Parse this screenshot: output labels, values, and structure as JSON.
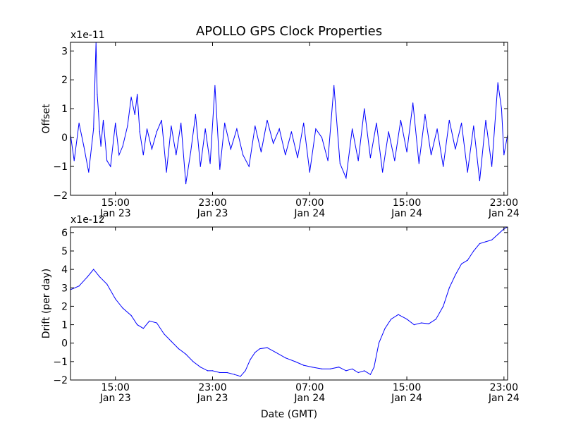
{
  "chart_data": [
    {
      "type": "line",
      "title": "APOLLO GPS Clock Properties",
      "ylabel": "Offset",
      "xlabel": "",
      "y_multiplier_label": "x1e-11",
      "ylim": [
        -2,
        3.3
      ],
      "yticks": [
        -2,
        -1,
        0,
        1,
        2,
        3
      ],
      "ytick_labels": [
        "−2",
        "−1",
        "0",
        "1",
        "2",
        "3"
      ],
      "xlim_hours": [
        11.3,
        47.3
      ],
      "xticks_hours": [
        15,
        23,
        31,
        39,
        47
      ],
      "xtick_labels": [
        [
          "15:00",
          "Jan 23"
        ],
        [
          "23:00",
          "Jan 23"
        ],
        [
          "07:00",
          "Jan 24"
        ],
        [
          "15:00",
          "Jan 24"
        ],
        [
          "23:00",
          "Jan 24"
        ]
      ],
      "line_color": "#0000ff",
      "grid": false,
      "series": [
        {
          "x_hours": [
            11.3,
            11.6,
            12.0,
            12.4,
            12.8,
            13.2,
            13.4,
            13.5,
            13.6,
            13.7,
            13.8,
            14.0,
            14.3,
            14.6,
            15.0,
            15.3,
            15.6,
            16.0,
            16.3,
            16.6,
            16.8,
            17.0,
            17.3,
            17.6,
            18.0,
            18.4,
            18.8,
            19.2,
            19.6,
            20.0,
            20.4,
            20.8,
            21.2,
            21.6,
            22.0,
            22.4,
            22.8,
            23.2,
            23.6,
            24.0,
            24.5,
            25.0,
            25.5,
            26.0,
            26.5,
            27.0,
            27.5,
            28.0,
            28.5,
            29.0,
            29.5,
            30.0,
            30.5,
            31.0,
            31.5,
            32.0,
            32.5,
            33.0,
            33.5,
            34.0,
            34.5,
            35.0,
            35.5,
            36.0,
            36.5,
            37.0,
            37.5,
            38.0,
            38.5,
            39.0,
            39.5,
            40.0,
            40.5,
            41.0,
            41.5,
            42.0,
            42.5,
            43.0,
            43.5,
            44.0,
            44.5,
            45.0,
            45.5,
            46.0,
            46.5,
            46.8,
            47.0,
            47.3
          ],
          "values": [
            0.1,
            -0.8,
            0.5,
            -0.3,
            -1.2,
            0.3,
            3.3,
            1.5,
            0.9,
            0.2,
            -0.3,
            0.6,
            -0.8,
            -1.0,
            0.5,
            -0.6,
            -0.3,
            0.4,
            1.4,
            0.8,
            1.5,
            0.2,
            -0.6,
            0.3,
            -0.4,
            0.2,
            0.6,
            -1.2,
            0.4,
            -0.6,
            0.5,
            -1.6,
            -0.5,
            0.8,
            -1.0,
            0.3,
            -0.9,
            1.8,
            -1.1,
            0.5,
            -0.4,
            0.3,
            -0.6,
            -1.0,
            0.4,
            -0.5,
            0.6,
            -0.2,
            0.3,
            -0.6,
            0.2,
            -0.7,
            0.5,
            -1.2,
            0.3,
            0.0,
            -0.8,
            1.8,
            -0.9,
            -1.4,
            0.3,
            -0.8,
            1.0,
            -0.7,
            0.5,
            -1.2,
            0.2,
            -0.8,
            0.6,
            -0.5,
            1.2,
            -0.9,
            0.8,
            -0.6,
            0.3,
            -1.0,
            0.6,
            -0.4,
            0.5,
            -1.2,
            0.4,
            -1.5,
            0.6,
            -1.0,
            1.9,
            1.0,
            -0.6,
            0.1
          ]
        }
      ]
    },
    {
      "type": "line",
      "title": "",
      "ylabel": "Drift (per day)",
      "xlabel": "Date (GMT)",
      "y_multiplier_label": "x1e-12",
      "ylim": [
        -2,
        6.3
      ],
      "yticks": [
        -2,
        -1,
        0,
        1,
        2,
        3,
        4,
        5,
        6
      ],
      "ytick_labels": [
        "−2",
        "−1",
        "0",
        "1",
        "2",
        "3",
        "4",
        "5",
        "6"
      ],
      "xlim_hours": [
        11.3,
        47.3
      ],
      "xticks_hours": [
        15,
        23,
        31,
        39,
        47
      ],
      "xtick_labels": [
        [
          "15:00",
          "Jan 23"
        ],
        [
          "23:00",
          "Jan 23"
        ],
        [
          "07:00",
          "Jan 24"
        ],
        [
          "15:00",
          "Jan 24"
        ],
        [
          "23:00",
          "Jan 24"
        ]
      ],
      "line_color": "#0000ff",
      "grid": false,
      "series": [
        {
          "x_hours": [
            11.3,
            12.0,
            12.7,
            13.2,
            13.7,
            14.3,
            15.0,
            15.6,
            16.3,
            16.8,
            17.3,
            17.8,
            18.4,
            19.0,
            19.6,
            20.2,
            20.8,
            21.4,
            22.0,
            22.6,
            23.0,
            23.6,
            24.2,
            24.8,
            25.3,
            25.7,
            26.1,
            26.5,
            26.9,
            27.5,
            28.2,
            29.0,
            29.8,
            30.5,
            31.2,
            32.0,
            32.7,
            33.4,
            34.0,
            34.5,
            35.0,
            35.5,
            36.0,
            36.3,
            36.7,
            37.2,
            37.7,
            38.3,
            39.0,
            39.6,
            40.2,
            40.8,
            41.4,
            42.0,
            42.5,
            43.0,
            43.5,
            44.0,
            44.5,
            45.0,
            45.5,
            46.0,
            46.5,
            47.0,
            47.3
          ],
          "values": [
            2.9,
            3.1,
            3.6,
            4.0,
            3.6,
            3.2,
            2.4,
            1.9,
            1.5,
            1.0,
            0.8,
            1.2,
            1.1,
            0.5,
            0.1,
            -0.3,
            -0.6,
            -1.0,
            -1.3,
            -1.5,
            -1.5,
            -1.6,
            -1.6,
            -1.7,
            -1.8,
            -1.5,
            -0.9,
            -0.5,
            -0.3,
            -0.25,
            -0.5,
            -0.8,
            -1.0,
            -1.2,
            -1.3,
            -1.4,
            -1.4,
            -1.3,
            -1.5,
            -1.4,
            -1.6,
            -1.5,
            -1.7,
            -1.3,
            0.0,
            0.8,
            1.3,
            1.55,
            1.3,
            1.0,
            1.1,
            1.05,
            1.3,
            2.0,
            3.0,
            3.7,
            4.3,
            4.5,
            5.0,
            5.4,
            5.5,
            5.6,
            5.9,
            6.2,
            6.3
          ]
        }
      ]
    }
  ]
}
